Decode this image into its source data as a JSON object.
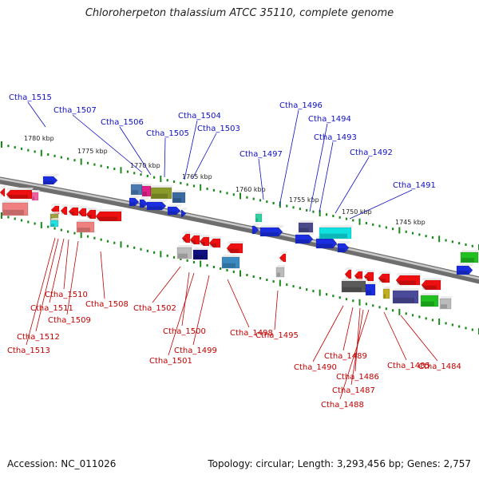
{
  "title": "Chloroherpeton thalassium ATCC 35110, complete genome",
  "footer": {
    "accession": "Accession: NC_011026",
    "summary": "Topology: circular; Length: 3,293,456 bp; Genes: 2,757"
  },
  "colors": {
    "backbone": "#8a8a8a",
    "tick": "#1a8a1a",
    "label_forward": "#1010c0",
    "label_reverse": "#c00000",
    "gene_forward": "#1a2ee0",
    "gene_reverse": "#ee1010"
  },
  "scale_labels": [
    "1780 kbp",
    "1775 kbp",
    "1770 kbp",
    "1765 kbp",
    "1760 kbp",
    "1755 kbp",
    "1750 kbp",
    "1745 kbp"
  ],
  "forward_genes": [
    "Ctha_1515",
    "Ctha_1507",
    "Ctha_1506",
    "Ctha_1505",
    "Ctha_1504",
    "Ctha_1503",
    "Ctha_1497",
    "Ctha_1496",
    "Ctha_1494",
    "Ctha_1493",
    "Ctha_1492",
    "Ctha_1491"
  ],
  "reverse_genes": [
    "Ctha_1510",
    "Ctha_1511",
    "Ctha_1509",
    "Ctha_1512",
    "Ctha_1513",
    "Ctha_1508",
    "Ctha_1502",
    "Ctha_1500",
    "Ctha_1501",
    "Ctha_1499",
    "Ctha_1498",
    "Ctha_1495",
    "Ctha_1490",
    "Ctha_1489",
    "Ctha_1486",
    "Ctha_1487",
    "Ctha_1488",
    "Ctha_1485",
    "Ctha_1484"
  ]
}
